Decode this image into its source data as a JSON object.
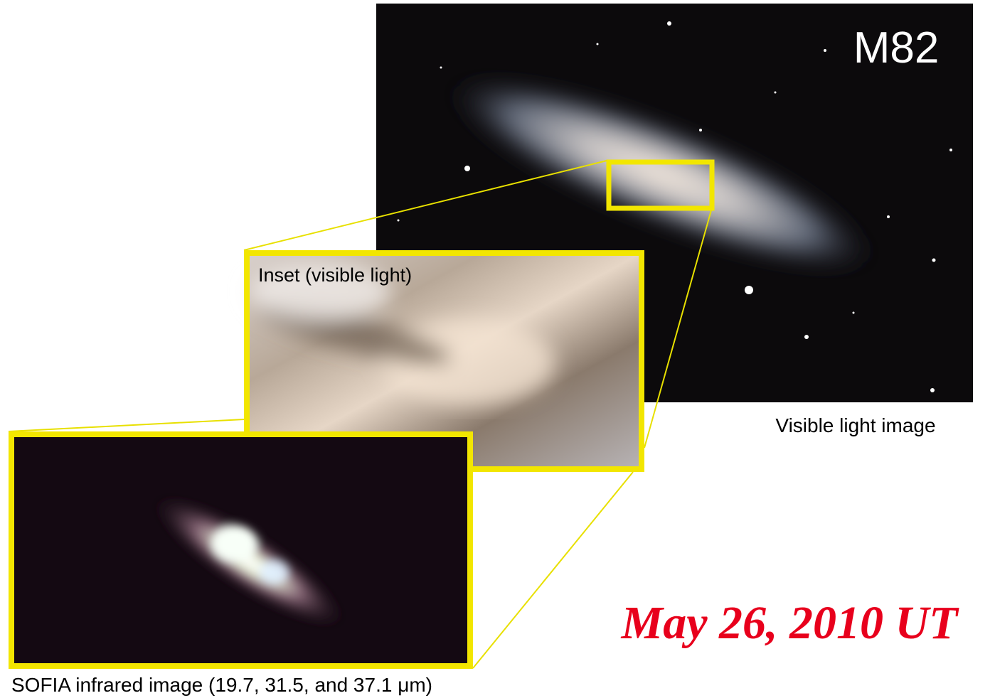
{
  "header": {
    "title": "M82",
    "date": "May 26, 2010 UT"
  },
  "panels": {
    "main": {
      "caption": "Visible light image"
    },
    "inset": {
      "caption": "Inset (visible light)"
    },
    "infrared": {
      "caption": "SOFIA infrared image (19.7, 31.5, and 37.1 μm)"
    }
  }
}
